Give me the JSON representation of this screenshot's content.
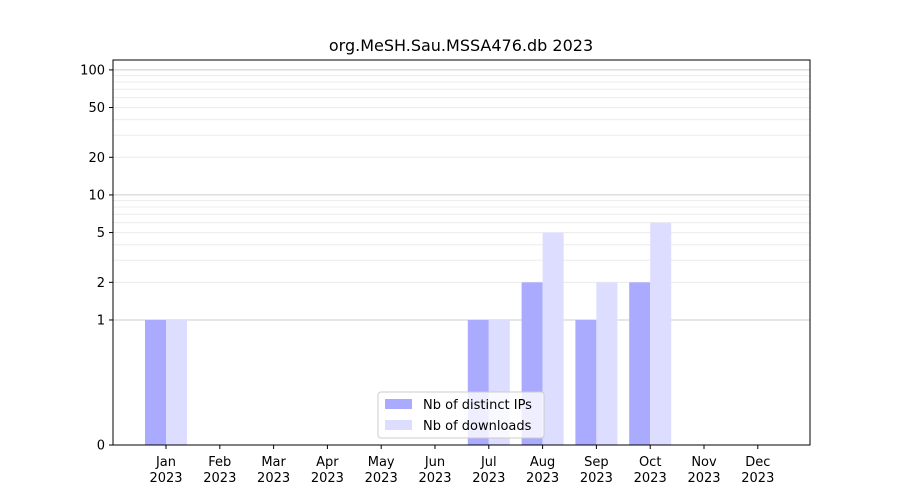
{
  "chart_data": {
    "type": "bar",
    "title": "org.MeSH.Sau.MSSA476.db 2023",
    "yscale": "symlog",
    "ylim": [
      0,
      120
    ],
    "ytick_values": [
      0,
      1,
      2,
      5,
      10,
      20,
      50,
      100
    ],
    "ytick_labels": [
      "0",
      "1",
      "2",
      "5",
      "10",
      "20",
      "50",
      "100"
    ],
    "categories": [
      {
        "month": "Jan",
        "year": "2023"
      },
      {
        "month": "Feb",
        "year": "2023"
      },
      {
        "month": "Mar",
        "year": "2023"
      },
      {
        "month": "Apr",
        "year": "2023"
      },
      {
        "month": "May",
        "year": "2023"
      },
      {
        "month": "Jun",
        "year": "2023"
      },
      {
        "month": "Jul",
        "year": "2023"
      },
      {
        "month": "Aug",
        "year": "2023"
      },
      {
        "month": "Sep",
        "year": "2023"
      },
      {
        "month": "Oct",
        "year": "2023"
      },
      {
        "month": "Nov",
        "year": "2023"
      },
      {
        "month": "Dec",
        "year": "2023"
      }
    ],
    "series": [
      {
        "name": "Nb of distinct IPs",
        "color": "#aaaaff",
        "values": [
          1,
          0,
          0,
          0,
          0,
          0,
          1,
          2,
          1,
          2,
          0,
          0
        ]
      },
      {
        "name": "Nb of downloads",
        "color": "#ddddff",
        "values": [
          1,
          0,
          0,
          0,
          0,
          0,
          1,
          5,
          2,
          6,
          0,
          0
        ]
      }
    ],
    "legend_position": "lower-center",
    "grid": "horizontal"
  }
}
